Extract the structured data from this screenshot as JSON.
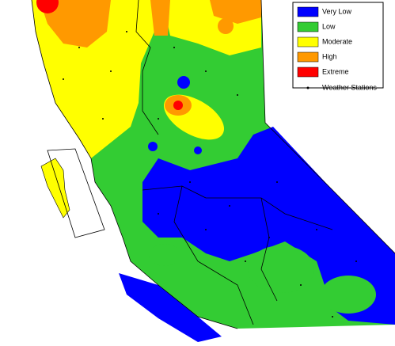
{
  "legend": {
    "items": [
      {
        "label": "Very Low",
        "color": "#0000ff"
      },
      {
        "label": "Low",
        "color": "#33cc33"
      },
      {
        "label": "Moderate",
        "color": "#ffff00"
      },
      {
        "label": "High",
        "color": "#ff9900"
      },
      {
        "label": "Extreme",
        "color": "#ff0000"
      }
    ],
    "stations": {
      "label": "Weather Stations"
    }
  }
}
